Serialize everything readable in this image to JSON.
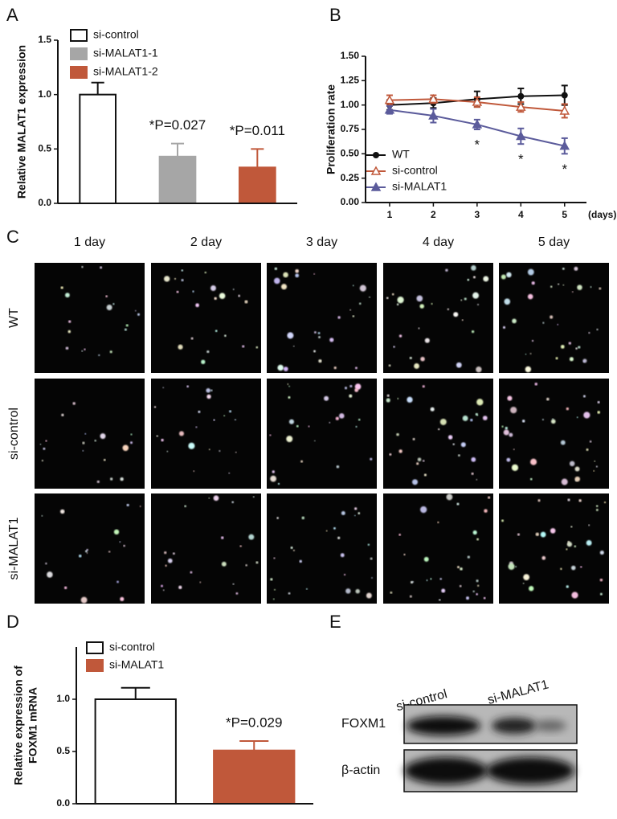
{
  "chart_data": [
    {
      "type": "bar",
      "panel_label": "A",
      "ylabel": "Relative MALAT1 expression",
      "categories": [
        null
      ],
      "series": [
        {
          "name": "si-control",
          "color": "#ffffff",
          "values": [
            1.0
          ],
          "errors": [
            0.11
          ]
        },
        {
          "name": "si-MALAT1-1",
          "color": "#a6a6a6",
          "values": [
            0.43
          ],
          "errors": [
            0.12
          ],
          "annotation": "*P=0.027"
        },
        {
          "name": "si-MALAT1-2",
          "color": "#c0583a",
          "values": [
            0.33
          ],
          "errors": [
            0.17
          ],
          "annotation": "*P=0.011"
        }
      ],
      "ylim": [
        0,
        1.5
      ],
      "yticks": [
        {
          "value": 0,
          "label": "0.0"
        },
        {
          "value": 0.5,
          "label": "0.5"
        },
        {
          "value": 1,
          "label": "1.0"
        },
        {
          "value": 1.5,
          "label": "1.5"
        }
      ]
    },
    {
      "type": "line",
      "panel_label": "B",
      "ylabel": "Proliferation rate",
      "xlabel": "(days)",
      "x": [
        1,
        2,
        3,
        4,
        5
      ],
      "series": [
        {
          "name": "WT",
          "color": "#111111",
          "marker": "circle",
          "values": [
            1.0,
            1.02,
            1.06,
            1.09,
            1.1
          ],
          "errors": [
            0.05,
            0.05,
            0.08,
            0.08,
            0.1
          ]
        },
        {
          "name": "si-control",
          "color": "#c0583a",
          "marker": "triangle-open",
          "values": [
            1.05,
            1.06,
            1.03,
            0.98,
            0.94
          ],
          "errors": [
            0.05,
            0.04,
            0.05,
            0.05,
            0.07
          ]
        },
        {
          "name": "si-MALAT1",
          "color": "#5b5b9b",
          "marker": "triangle",
          "values": [
            0.95,
            0.89,
            0.8,
            0.68,
            0.58
          ],
          "errors": [
            0.04,
            0.07,
            0.05,
            0.08,
            0.08
          ]
        }
      ],
      "annotations": [
        {
          "x": 3,
          "text": "*"
        },
        {
          "x": 4,
          "text": "*"
        },
        {
          "x": 5,
          "text": "*"
        }
      ],
      "xlim": [
        0.45,
        5.5
      ],
      "xticks": [
        1,
        2,
        3,
        4,
        5
      ],
      "ylim": [
        0,
        1.5
      ],
      "yticks": [
        {
          "value": 0,
          "label": "0.00"
        },
        {
          "value": 0.25,
          "label": "0.25"
        },
        {
          "value": 0.5,
          "label": "0.50"
        },
        {
          "value": 0.75,
          "label": "0.75"
        },
        {
          "value": 1,
          "label": "1.00"
        },
        {
          "value": 1.25,
          "label": "1.25"
        },
        {
          "value": 1.5,
          "label": "1.50"
        }
      ]
    },
    {
      "type": "bar",
      "panel_label": "D",
      "ylabel": [
        "Relative expression of",
        "FOXM1 mRNA"
      ],
      "categories": [
        null
      ],
      "series": [
        {
          "name": "si-control",
          "color": "#ffffff",
          "values": [
            1.0
          ],
          "errors": [
            0.11
          ]
        },
        {
          "name": "si-MALAT1",
          "color": "#c0583a",
          "values": [
            0.51
          ],
          "errors": [
            0.09
          ],
          "annotation": "*P=0.029"
        }
      ],
      "ylim": [
        0,
        1.5
      ],
      "yticks": [
        {
          "value": 0,
          "label": "0.0"
        },
        {
          "value": 0.5,
          "label": "0.5"
        },
        {
          "value": 1,
          "label": "1.0"
        }
      ]
    }
  ],
  "panel_c": {
    "panel_label": "C",
    "columns": [
      "1 day",
      "2 day",
      "3 day",
      "4 day",
      "5 day"
    ],
    "rows": [
      "WT",
      "si-control",
      "si-MALAT1"
    ]
  },
  "panel_e": {
    "panel_label": "E",
    "lanes": [
      "si-control",
      "si-MALAT1"
    ],
    "proteins": [
      "FOXM1",
      "β-actin"
    ]
  }
}
